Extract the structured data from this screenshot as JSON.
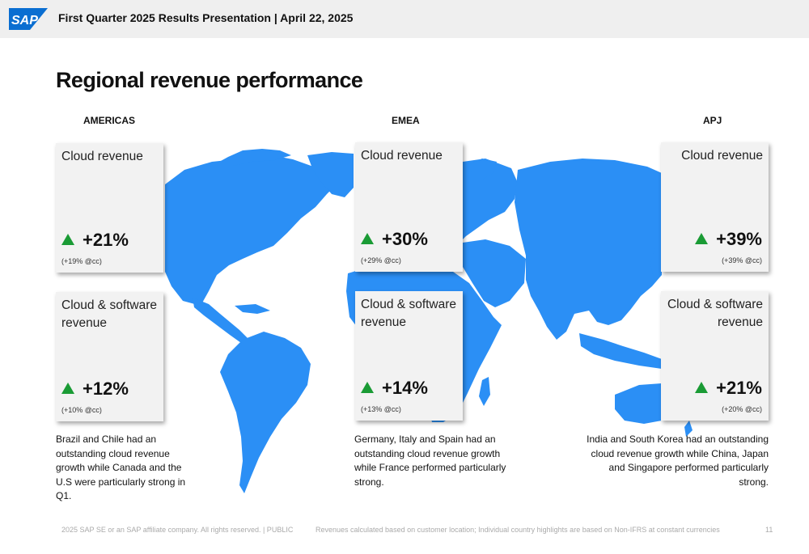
{
  "header": {
    "logo_text": "SAP",
    "title": "First Quarter 2025 Results Presentation | April 22, 2025"
  },
  "page_title": "Regional revenue performance",
  "regions": [
    {
      "label": "AMERICAS",
      "cloud": {
        "title": "Cloud revenue",
        "growth": "+21%",
        "cc": "(+19% @cc)"
      },
      "cloud_software": {
        "title": "Cloud & software revenue",
        "growth": "+12%",
        "cc": "(+10% @cc)"
      },
      "note": "Brazil and Chile had an outstanding  cloud revenue growth while Canada and the U.S were particularly strong in Q1."
    },
    {
      "label": "EMEA",
      "cloud": {
        "title": "Cloud revenue",
        "growth": "+30%",
        "cc": "(+29% @cc)"
      },
      "cloud_software": {
        "title": "Cloud & software revenue",
        "growth": "+14%",
        "cc": "(+13% @cc)"
      },
      "note": "Germany, Italy and Spain had an outstanding cloud revenue growth while France performed particularly strong."
    },
    {
      "label": "APJ",
      "cloud": {
        "title": "Cloud revenue",
        "growth": "+39%",
        "cc": "(+39% @cc)"
      },
      "cloud_software": {
        "title": "Cloud & software revenue",
        "growth": "+21%",
        "cc": "(+20% @cc)"
      },
      "note": "India and South Korea had an outstanding cloud revenue growth while China, Japan and Singapore performed particularly strong."
    }
  ],
  "footer": {
    "copyright": "2025 SAP SE or an SAP affiliate company. All rights reserved.  | PUBLIC",
    "disclaimer": "Revenues calculated based on customer location; Individual country highlights are based on Non-IFRS at constant currencies",
    "page_number": "11"
  },
  "colors": {
    "map_blue": "#2b8ff5",
    "growth_arrow": "#1a9b35",
    "sap_logo": "#0a6ed1"
  }
}
